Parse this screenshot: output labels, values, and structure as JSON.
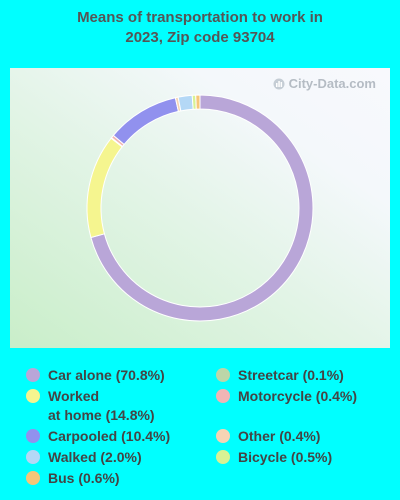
{
  "title_line1": "Means of transportation to work in",
  "title_line2": "2023, Zip code 93704",
  "watermark": "City-Data.com",
  "chart_data": {
    "type": "pie",
    "donut": true,
    "slices": [
      {
        "label": "Car alone",
        "value": 70.8,
        "color": "#b9a6d8",
        "legend": "Car alone (70.8%)"
      },
      {
        "label": "Worked at home",
        "value": 14.8,
        "color": "#f5f58f",
        "legend_line1": "Worked",
        "legend_line2": "at home (14.8%)"
      },
      {
        "label": "Streetcar",
        "value": 0.1,
        "color": "#bcd6a8",
        "legend": "Streetcar (0.1%)"
      },
      {
        "label": "Motorcycle",
        "value": 0.4,
        "color": "#f1b5b5",
        "legend": "Motorcycle (0.4%)"
      },
      {
        "label": "Carpooled",
        "value": 10.4,
        "color": "#9191ee",
        "legend": "Carpooled (10.4%)"
      },
      {
        "label": "Other",
        "value": 0.4,
        "color": "#f6d4b4",
        "legend": "Other (0.4%)"
      },
      {
        "label": "Walked",
        "value": 2.0,
        "color": "#b4d8f6",
        "legend": "Walked (2.0%)"
      },
      {
        "label": "Bicycle",
        "value": 0.5,
        "color": "#d8f294",
        "legend": "Bicycle (0.5%)"
      },
      {
        "label": "Bus",
        "value": 0.6,
        "color": "#f6c678",
        "legend": "Bus (0.6%)"
      }
    ]
  }
}
